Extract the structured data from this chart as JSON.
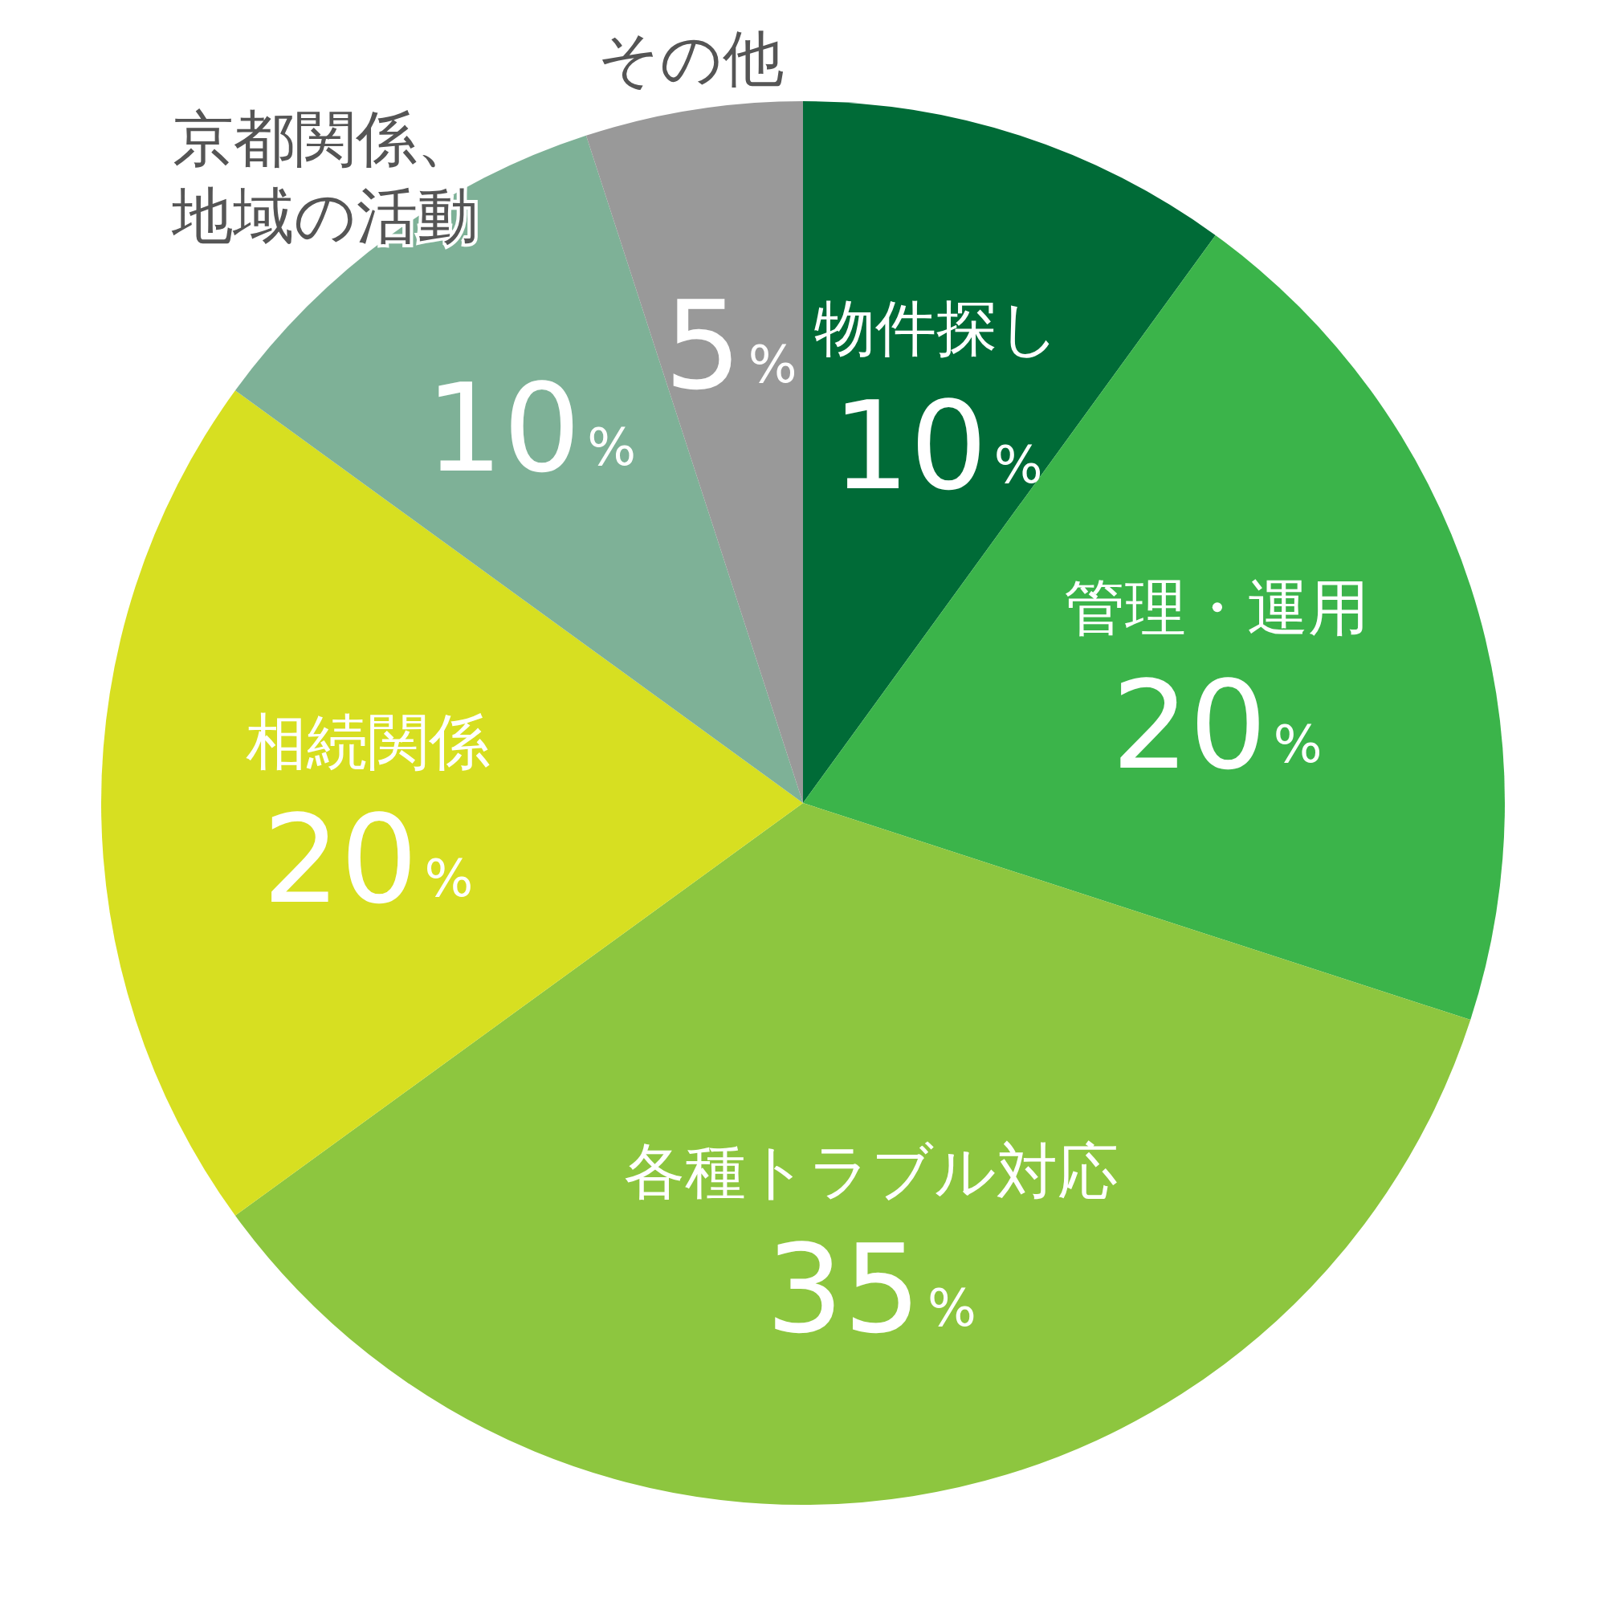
{
  "chart_data": {
    "type": "pie",
    "categories": [
      "物件探し",
      "管理・運用",
      "各種トラブル対応",
      "相続関係",
      "京都関係、地域の活動",
      "その他"
    ],
    "values": [
      10,
      20,
      35,
      20,
      10,
      5
    ],
    "value_labels": [
      "10%",
      "20%",
      "35%",
      "20%",
      "10%",
      "5%"
    ],
    "colors": [
      "#006b37",
      "#3bb44a",
      "#8dc63f",
      "#d7df21",
      "#7eb197",
      "#999999"
    ],
    "legend": false
  }
}
